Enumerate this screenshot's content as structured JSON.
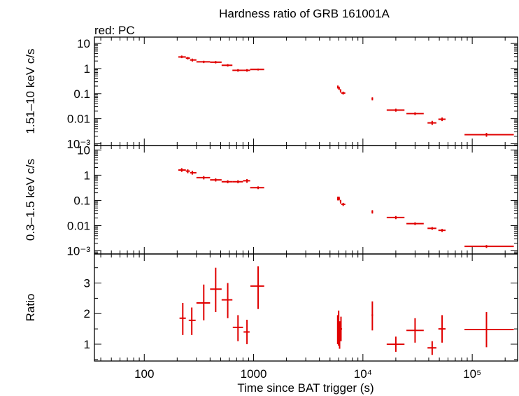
{
  "chart_data": {
    "type": "scatter",
    "title": "Hardness ratio of GRB 161001A",
    "legend_note": "red: PC",
    "xlabel": "Time since BAT trigger (s)",
    "x_scale": "log",
    "xlim": [
      35,
      260000
    ],
    "x_ticks": [
      {
        "value": 100,
        "label": "100"
      },
      {
        "value": 1000,
        "label": "1000"
      },
      {
        "value": 10000,
        "label": "10⁴"
      },
      {
        "value": 100000,
        "label": "10⁵"
      }
    ],
    "series_color": "#e00000",
    "panels": [
      {
        "name": "hard-band",
        "ylabel": "1.51–10 keV c/s",
        "y_scale": "log",
        "ylim": [
          0.00085,
          18
        ],
        "y_ticks": [
          {
            "value": 10,
            "label": "10"
          },
          {
            "value": 1,
            "label": "1"
          },
          {
            "value": 0.1,
            "label": "0.1"
          },
          {
            "value": 0.01,
            "label": "0.01"
          },
          {
            "value": 0.001,
            "label": "10⁻³"
          }
        ],
        "points": [
          {
            "x": 220,
            "xlo": 205,
            "xhi": 240,
            "y": 2.9,
            "ylo": 2.6,
            "yhi": 3.3
          },
          {
            "x": 250,
            "xlo": 240,
            "xhi": 262,
            "y": 2.6,
            "ylo": 2.3,
            "yhi": 2.9
          },
          {
            "x": 275,
            "xlo": 262,
            "xhi": 300,
            "y": 2.2,
            "ylo": 1.9,
            "yhi": 2.5
          },
          {
            "x": 350,
            "xlo": 300,
            "xhi": 400,
            "y": 1.85,
            "ylo": 1.65,
            "yhi": 2.05
          },
          {
            "x": 450,
            "xlo": 400,
            "xhi": 510,
            "y": 1.8,
            "ylo": 1.6,
            "yhi": 2.0
          },
          {
            "x": 580,
            "xlo": 510,
            "xhi": 640,
            "y": 1.35,
            "ylo": 1.2,
            "yhi": 1.5
          },
          {
            "x": 720,
            "xlo": 640,
            "xhi": 800,
            "y": 0.85,
            "ylo": 0.75,
            "yhi": 0.95
          },
          {
            "x": 870,
            "xlo": 800,
            "xhi": 930,
            "y": 0.85,
            "ylo": 0.75,
            "yhi": 0.95
          },
          {
            "x": 1100,
            "xlo": 930,
            "xhi": 1250,
            "y": 0.92,
            "ylo": 0.84,
            "yhi": 1.0
          },
          {
            "x": 5900,
            "xlo": 5850,
            "xhi": 5950,
            "y": 0.18,
            "ylo": 0.16,
            "yhi": 0.21
          },
          {
            "x": 6050,
            "xlo": 5950,
            "xhi": 6150,
            "y": 0.16,
            "ylo": 0.14,
            "yhi": 0.19
          },
          {
            "x": 6250,
            "xlo": 6150,
            "xhi": 6350,
            "y": 0.13,
            "ylo": 0.11,
            "yhi": 0.15
          },
          {
            "x": 6600,
            "xlo": 6350,
            "xhi": 6900,
            "y": 0.105,
            "ylo": 0.092,
            "yhi": 0.12
          },
          {
            "x": 12200,
            "xlo": 12000,
            "xhi": 12400,
            "y": 0.062,
            "ylo": 0.054,
            "yhi": 0.071
          },
          {
            "x": 20000,
            "xlo": 16500,
            "xhi": 24000,
            "y": 0.022,
            "ylo": 0.019,
            "yhi": 0.025
          },
          {
            "x": 30000,
            "xlo": 25000,
            "xhi": 36000,
            "y": 0.016,
            "ylo": 0.014,
            "yhi": 0.018
          },
          {
            "x": 43000,
            "xlo": 39000,
            "xhi": 47000,
            "y": 0.0068,
            "ylo": 0.0056,
            "yhi": 0.0082
          },
          {
            "x": 53000,
            "xlo": 49000,
            "xhi": 57000,
            "y": 0.0095,
            "ylo": 0.008,
            "yhi": 0.0112
          },
          {
            "x": 135000,
            "xlo": 85000,
            "xhi": 240000,
            "y": 0.0023,
            "ylo": 0.0019,
            "yhi": 0.0027
          }
        ]
      },
      {
        "name": "soft-band",
        "ylabel": "0.3–1.5 keV c/s",
        "y_scale": "log",
        "ylim": [
          0.00075,
          15
        ],
        "y_ticks": [
          {
            "value": 10,
            "label": "10"
          },
          {
            "value": 1,
            "label": "1"
          },
          {
            "value": 0.1,
            "label": "0.1"
          },
          {
            "value": 0.01,
            "label": "0.01"
          },
          {
            "value": 0.001,
            "label": "10⁻³"
          }
        ],
        "points": [
          {
            "x": 220,
            "xlo": 205,
            "xhi": 240,
            "y": 1.6,
            "ylo": 1.35,
            "yhi": 1.9
          },
          {
            "x": 250,
            "xlo": 240,
            "xhi": 262,
            "y": 1.45,
            "ylo": 1.2,
            "yhi": 1.7
          },
          {
            "x": 275,
            "xlo": 262,
            "xhi": 300,
            "y": 1.25,
            "ylo": 1.05,
            "yhi": 1.5
          },
          {
            "x": 350,
            "xlo": 300,
            "xhi": 400,
            "y": 0.8,
            "ylo": 0.68,
            "yhi": 0.92
          },
          {
            "x": 450,
            "xlo": 400,
            "xhi": 510,
            "y": 0.65,
            "ylo": 0.56,
            "yhi": 0.75
          },
          {
            "x": 580,
            "xlo": 510,
            "xhi": 640,
            "y": 0.55,
            "ylo": 0.48,
            "yhi": 0.63
          },
          {
            "x": 720,
            "xlo": 640,
            "xhi": 800,
            "y": 0.55,
            "ylo": 0.48,
            "yhi": 0.63
          },
          {
            "x": 870,
            "xlo": 800,
            "xhi": 930,
            "y": 0.6,
            "ylo": 0.5,
            "yhi": 0.7
          },
          {
            "x": 1100,
            "xlo": 930,
            "xhi": 1250,
            "y": 0.32,
            "ylo": 0.28,
            "yhi": 0.36
          },
          {
            "x": 5900,
            "xlo": 5850,
            "xhi": 5950,
            "y": 0.12,
            "ylo": 0.1,
            "yhi": 0.14
          },
          {
            "x": 6050,
            "xlo": 5950,
            "xhi": 6150,
            "y": 0.12,
            "ylo": 0.1,
            "yhi": 0.14
          },
          {
            "x": 6250,
            "xlo": 6150,
            "xhi": 6350,
            "y": 0.09,
            "ylo": 0.075,
            "yhi": 0.105
          },
          {
            "x": 6600,
            "xlo": 6350,
            "xhi": 6900,
            "y": 0.07,
            "ylo": 0.06,
            "yhi": 0.08
          },
          {
            "x": 12200,
            "xlo": 12000,
            "xhi": 12400,
            "y": 0.035,
            "ylo": 0.03,
            "yhi": 0.041
          },
          {
            "x": 20000,
            "xlo": 16500,
            "xhi": 24000,
            "y": 0.021,
            "ylo": 0.018,
            "yhi": 0.024
          },
          {
            "x": 30000,
            "xlo": 25000,
            "xhi": 36000,
            "y": 0.012,
            "ylo": 0.0105,
            "yhi": 0.0135
          },
          {
            "x": 43000,
            "xlo": 39000,
            "xhi": 47000,
            "y": 0.0078,
            "ylo": 0.0068,
            "yhi": 0.0088
          },
          {
            "x": 53000,
            "xlo": 49000,
            "xhi": 57000,
            "y": 0.0065,
            "ylo": 0.0056,
            "yhi": 0.0074
          },
          {
            "x": 135000,
            "xlo": 85000,
            "xhi": 240000,
            "y": 0.0015,
            "ylo": 0.0013,
            "yhi": 0.0017
          }
        ]
      },
      {
        "name": "ratio",
        "ylabel": "Ratio",
        "y_scale": "linear",
        "ylim": [
          0.45,
          3.95
        ],
        "y_ticks": [
          {
            "value": 1,
            "label": "1"
          },
          {
            "value": 2,
            "label": "2"
          },
          {
            "value": 3,
            "label": "3"
          }
        ],
        "points": [
          {
            "x": 225,
            "xlo": 210,
            "xhi": 240,
            "y": 1.85,
            "ylo": 1.3,
            "yhi": 2.35
          },
          {
            "x": 272,
            "xlo": 255,
            "xhi": 295,
            "y": 1.78,
            "ylo": 1.3,
            "yhi": 2.2
          },
          {
            "x": 350,
            "xlo": 300,
            "xhi": 400,
            "y": 2.35,
            "ylo": 1.78,
            "yhi": 2.95
          },
          {
            "x": 450,
            "xlo": 400,
            "xhi": 510,
            "y": 2.8,
            "ylo": 2.05,
            "yhi": 3.5
          },
          {
            "x": 580,
            "xlo": 510,
            "xhi": 640,
            "y": 2.45,
            "ylo": 1.85,
            "yhi": 3.0
          },
          {
            "x": 720,
            "xlo": 645,
            "xhi": 800,
            "y": 1.55,
            "ylo": 1.1,
            "yhi": 1.95
          },
          {
            "x": 870,
            "xlo": 810,
            "xhi": 920,
            "y": 1.4,
            "ylo": 1.0,
            "yhi": 1.8
          },
          {
            "x": 1100,
            "xlo": 935,
            "xhi": 1250,
            "y": 2.9,
            "ylo": 2.15,
            "yhi": 3.55
          },
          {
            "x": 5880,
            "xlo": 5840,
            "xhi": 5930,
            "y": 1.45,
            "ylo": 1.0,
            "yhi": 1.95
          },
          {
            "x": 6000,
            "xlo": 5950,
            "xhi": 6050,
            "y": 1.4,
            "ylo": 0.95,
            "yhi": 2.1
          },
          {
            "x": 6120,
            "xlo": 6060,
            "xhi": 6190,
            "y": 1.3,
            "ylo": 0.85,
            "yhi": 1.75
          },
          {
            "x": 6300,
            "xlo": 6200,
            "xhi": 6450,
            "y": 1.5,
            "ylo": 1.1,
            "yhi": 1.9
          },
          {
            "x": 12200,
            "xlo": 12000,
            "xhi": 12400,
            "y": 1.95,
            "ylo": 1.45,
            "yhi": 2.4
          },
          {
            "x": 20000,
            "xlo": 16500,
            "xhi": 24000,
            "y": 1.0,
            "ylo": 0.75,
            "yhi": 1.25
          },
          {
            "x": 30000,
            "xlo": 25000,
            "xhi": 36000,
            "y": 1.45,
            "ylo": 1.05,
            "yhi": 1.85
          },
          {
            "x": 43000,
            "xlo": 39000,
            "xhi": 47000,
            "y": 0.88,
            "ylo": 0.65,
            "yhi": 1.1
          },
          {
            "x": 53000,
            "xlo": 49000,
            "xhi": 57000,
            "y": 1.5,
            "ylo": 1.05,
            "yhi": 1.95
          },
          {
            "x": 135000,
            "xlo": 85000,
            "xhi": 240000,
            "y": 1.48,
            "ylo": 0.9,
            "yhi": 2.05
          }
        ]
      }
    ]
  }
}
